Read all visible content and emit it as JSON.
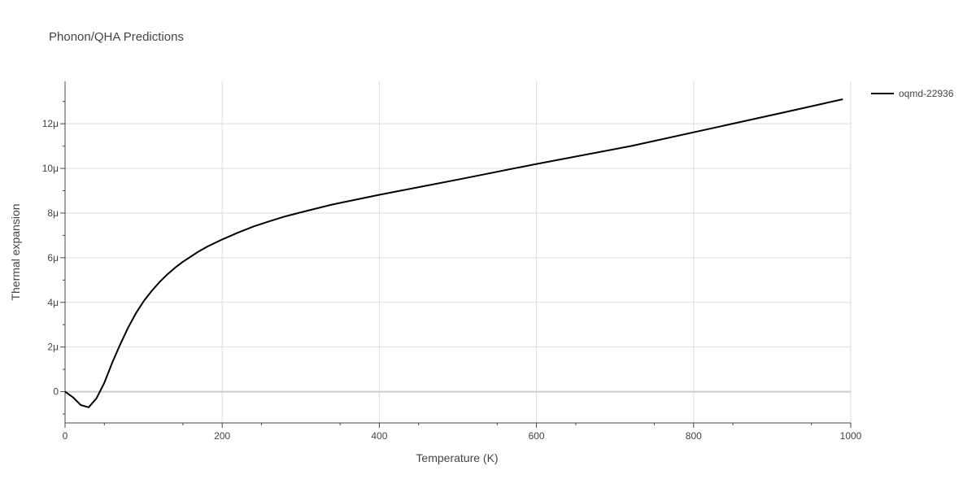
{
  "chart_data": {
    "type": "line",
    "title": "Phonon/QHA Predictions",
    "xlabel": "Temperature (K)",
    "ylabel": "Thermal expansion",
    "xlim": [
      0,
      1000
    ],
    "ylim": [
      -1.4,
      13.9
    ],
    "x_ticks": [
      0,
      200,
      400,
      600,
      800,
      1000
    ],
    "x_tick_labels": [
      "0",
      "200",
      "400",
      "600",
      "800",
      "1000"
    ],
    "y_ticks": [
      0,
      2,
      4,
      6,
      8,
      10,
      12
    ],
    "y_tick_labels": [
      "0",
      "2μ",
      "4μ",
      "6μ",
      "8μ",
      "10μ",
      "12μ"
    ],
    "grid": true,
    "legend_position": "top-right",
    "series": [
      {
        "name": "oqmd-22936",
        "color": "#000000",
        "x": [
          0,
          10,
          20,
          30,
          40,
          50,
          60,
          70,
          80,
          90,
          100,
          110,
          120,
          130,
          140,
          150,
          160,
          170,
          180,
          200,
          220,
          240,
          260,
          280,
          300,
          340,
          400,
          500,
          600,
          720,
          830,
          920,
          990
        ],
        "y": [
          0,
          -0.25,
          -0.6,
          -0.7,
          -0.3,
          0.4,
          1.3,
          2.1,
          2.85,
          3.5,
          4.05,
          4.5,
          4.9,
          5.25,
          5.55,
          5.82,
          6.05,
          6.28,
          6.48,
          6.82,
          7.12,
          7.4,
          7.63,
          7.85,
          8.03,
          8.38,
          8.82,
          9.5,
          10.2,
          11.0,
          11.85,
          12.55,
          13.1
        ]
      }
    ]
  }
}
